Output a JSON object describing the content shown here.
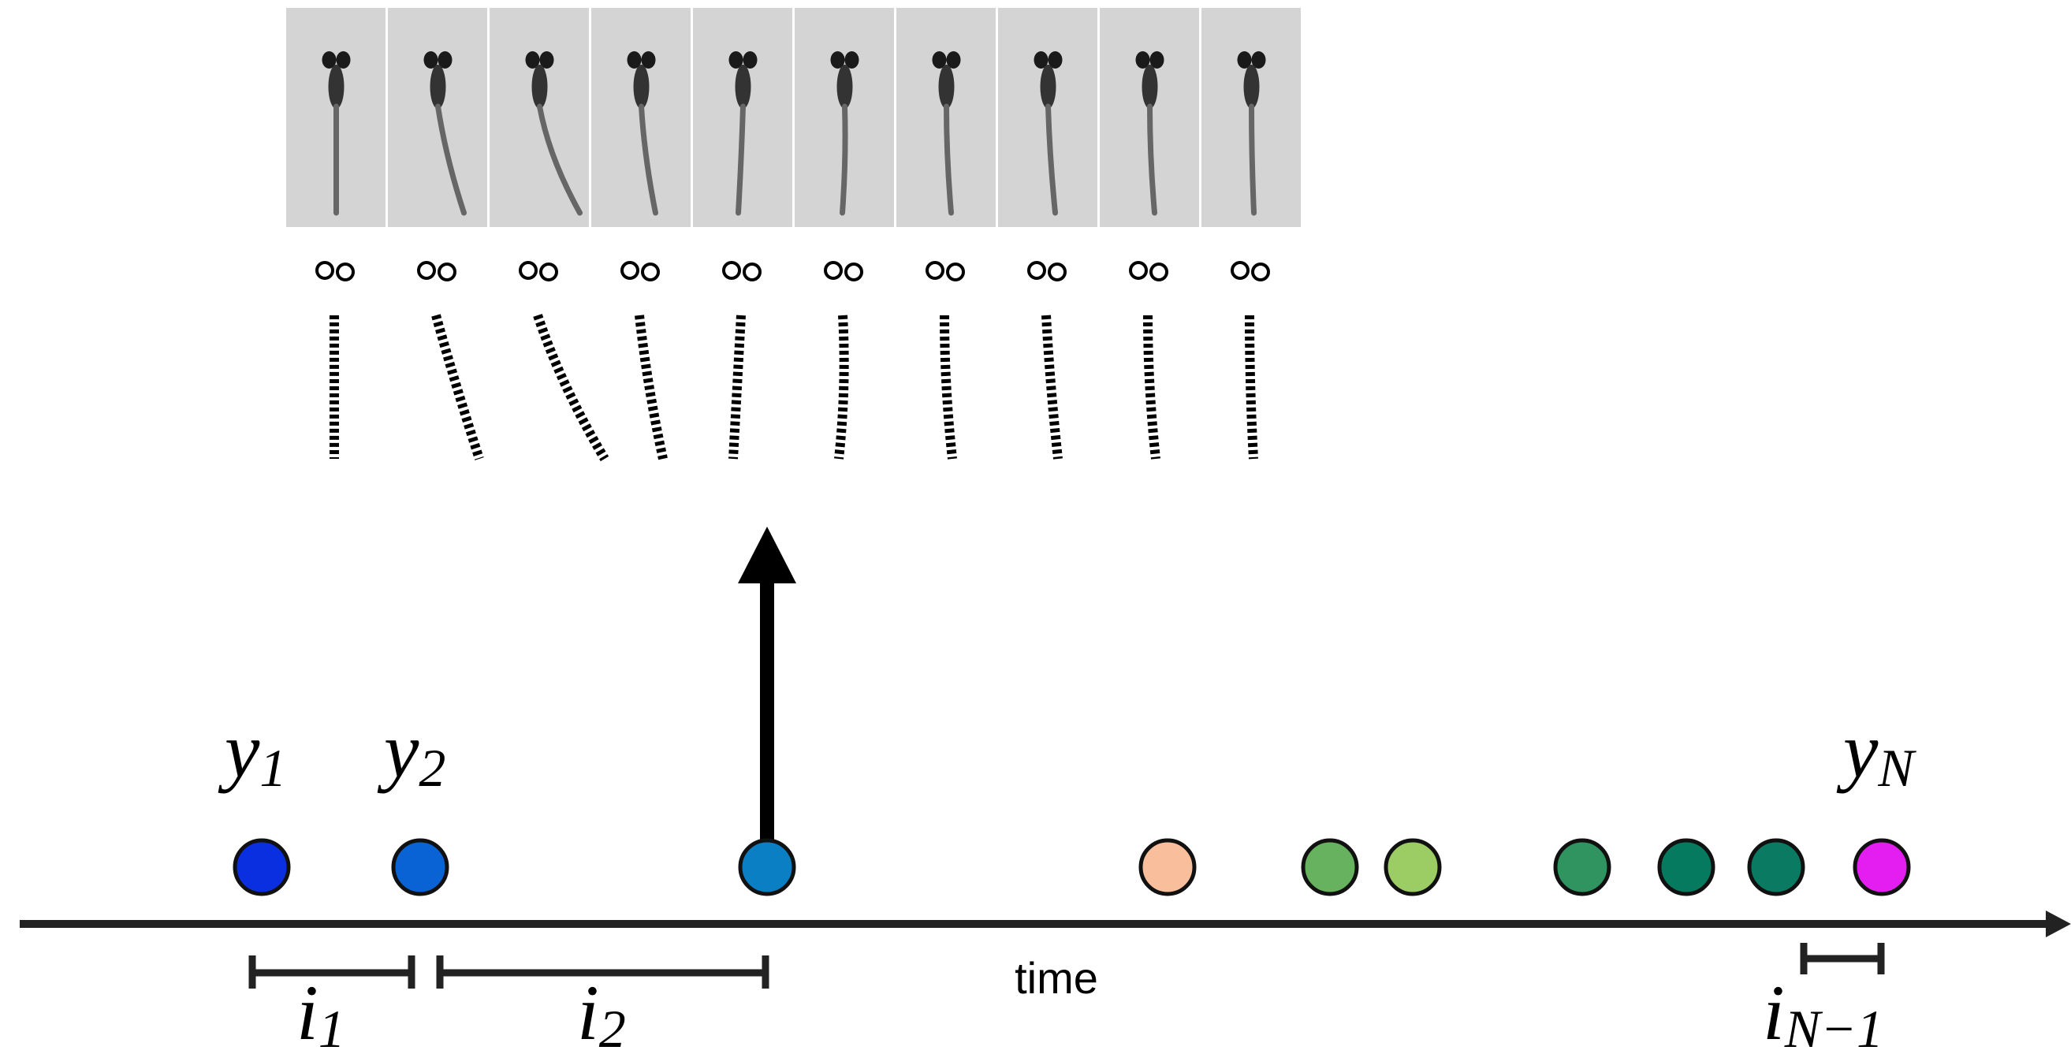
{
  "event_labels": [
    {
      "base": "y",
      "sub": "1"
    },
    {
      "base": "y",
      "sub": "2"
    },
    {
      "base": "y",
      "sub": "N"
    }
  ],
  "interval_labels": [
    {
      "base": "i",
      "sub": "1"
    },
    {
      "base": "i",
      "sub": "2"
    },
    {
      "base": "i",
      "sub": "N−1"
    }
  ],
  "axis_label": "time"
}
